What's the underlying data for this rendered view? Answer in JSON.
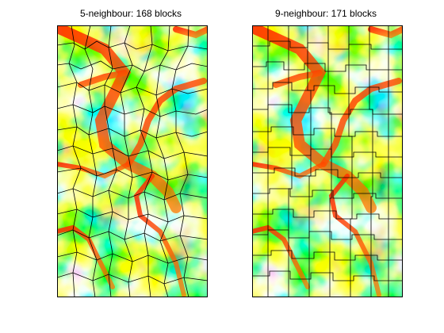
{
  "panels": [
    {
      "title": "5-neighbour: 168 blocks"
    },
    {
      "title": "9-neighbour: 171 blocks"
    }
  ],
  "colormap": "jet",
  "colors": {
    "background": "#ffffff",
    "boundary": "#000000"
  }
}
